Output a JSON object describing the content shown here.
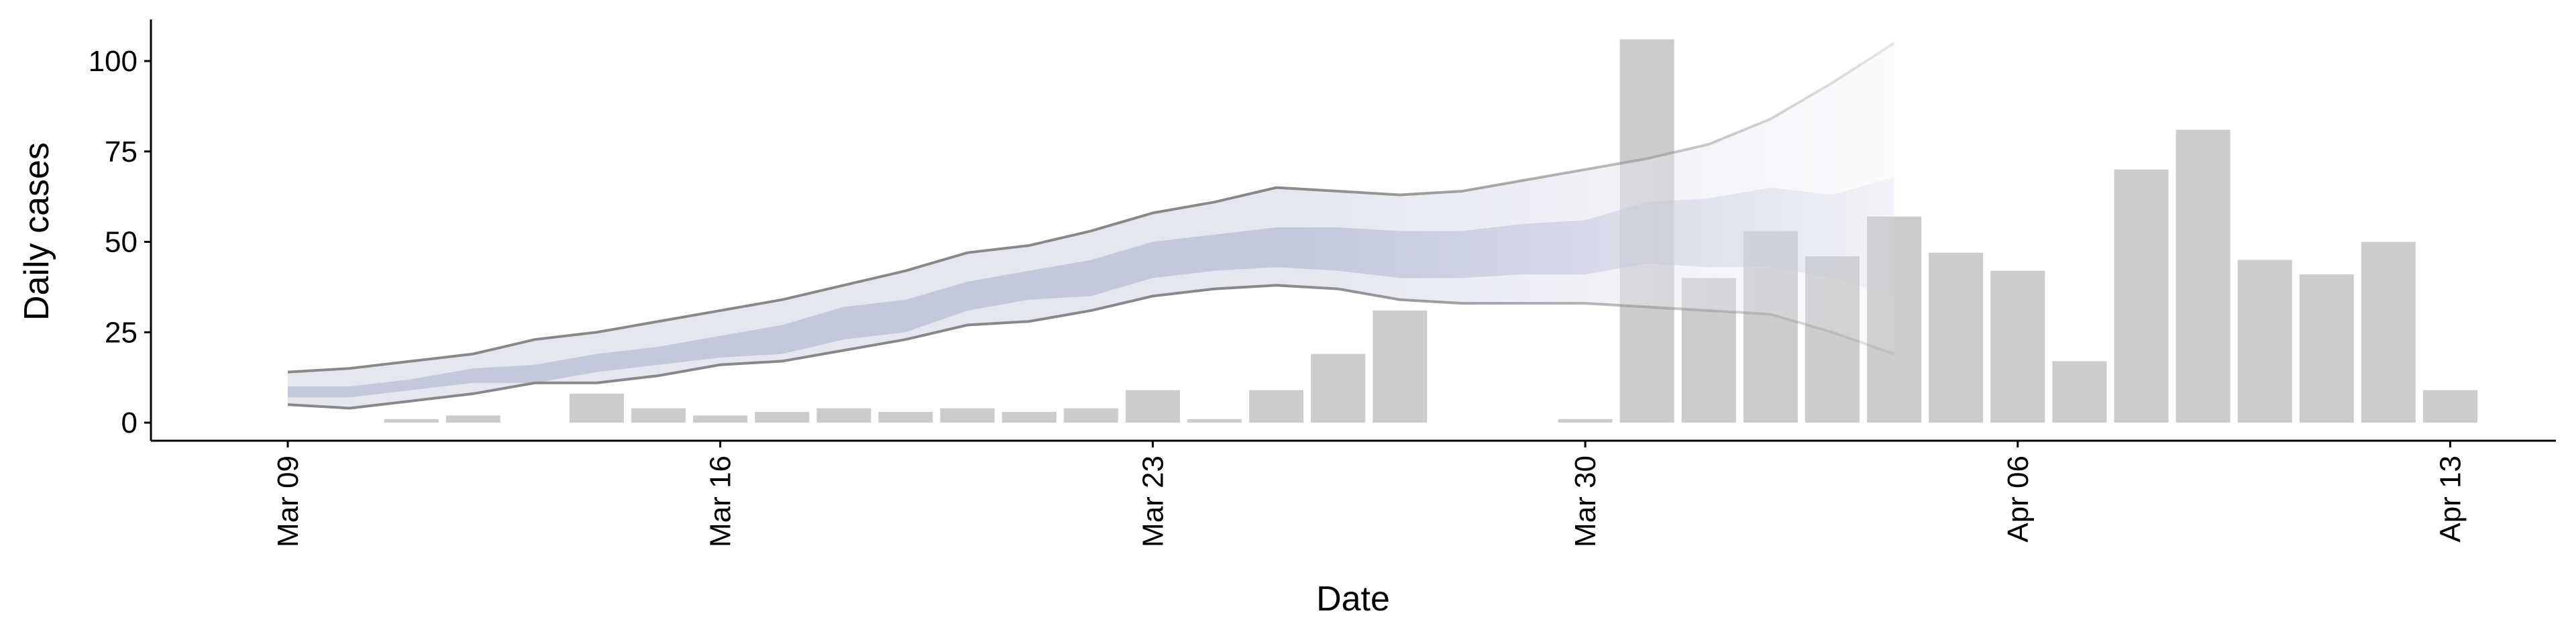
{
  "chart_data": {
    "type": "bar",
    "x_label": "Date",
    "y_label": "Daily cases",
    "categories": [
      "Mar 09",
      null,
      null,
      null,
      null,
      null,
      null,
      "Mar 16",
      null,
      null,
      null,
      null,
      null,
      null,
      "Mar 23",
      null,
      null,
      null,
      null,
      null,
      null,
      "Mar 30",
      null,
      null,
      null,
      null,
      null,
      null,
      "Apr 06",
      null,
      null,
      null,
      null,
      null,
      null,
      "Apr 13"
    ],
    "values": [
      0,
      0,
      1,
      2,
      0,
      8,
      4,
      2,
      3,
      4,
      3,
      4,
      3,
      4,
      9,
      1,
      9,
      19,
      31,
      0,
      0,
      1,
      106,
      40,
      53,
      46,
      57,
      47,
      42,
      17,
      70,
      81,
      45,
      41,
      50,
      9
    ],
    "color": "#cccccc",
    "outer_band": {
      "color": "#e4e6f0",
      "line_color": "#888888",
      "upper": [
        14,
        15,
        17,
        19,
        23,
        25,
        28,
        31,
        34,
        38,
        42,
        47,
        49,
        53,
        58,
        61,
        65,
        64,
        63,
        64,
        67,
        70,
        73,
        77,
        84,
        94,
        105,
        null,
        null,
        null,
        null,
        null,
        null,
        null,
        null,
        null
      ],
      "lower": [
        5,
        4,
        6,
        8,
        11,
        11,
        13,
        16,
        17,
        20,
        23,
        27,
        28,
        31,
        35,
        37,
        38,
        37,
        34,
        33,
        33,
        33,
        32,
        31,
        30,
        25,
        19,
        null,
        null,
        null,
        null,
        null,
        null,
        null,
        null,
        null
      ]
    },
    "inner_band": {
      "color": "#c3c8dc",
      "upper": [
        10,
        10,
        12,
        15,
        16,
        19,
        21,
        24,
        27,
        32,
        34,
        39,
        42,
        45,
        50,
        52,
        54,
        54,
        53,
        53,
        55,
        56,
        61,
        62,
        65,
        63,
        68,
        null,
        null,
        null,
        null,
        null,
        null,
        null,
        null,
        null
      ],
      "lower": [
        7,
        7,
        9,
        11,
        11,
        14,
        16,
        18,
        19,
        23,
        25,
        31,
        34,
        35,
        40,
        42,
        43,
        42,
        40,
        40,
        41,
        41,
        44,
        43,
        43,
        40,
        35,
        null,
        null,
        null,
        null,
        null,
        null,
        null,
        null,
        null
      ]
    },
    "ylim": [
      -5,
      111.5
    ],
    "yticks": [
      0,
      25,
      50,
      75,
      100
    ],
    "grid": false
  }
}
